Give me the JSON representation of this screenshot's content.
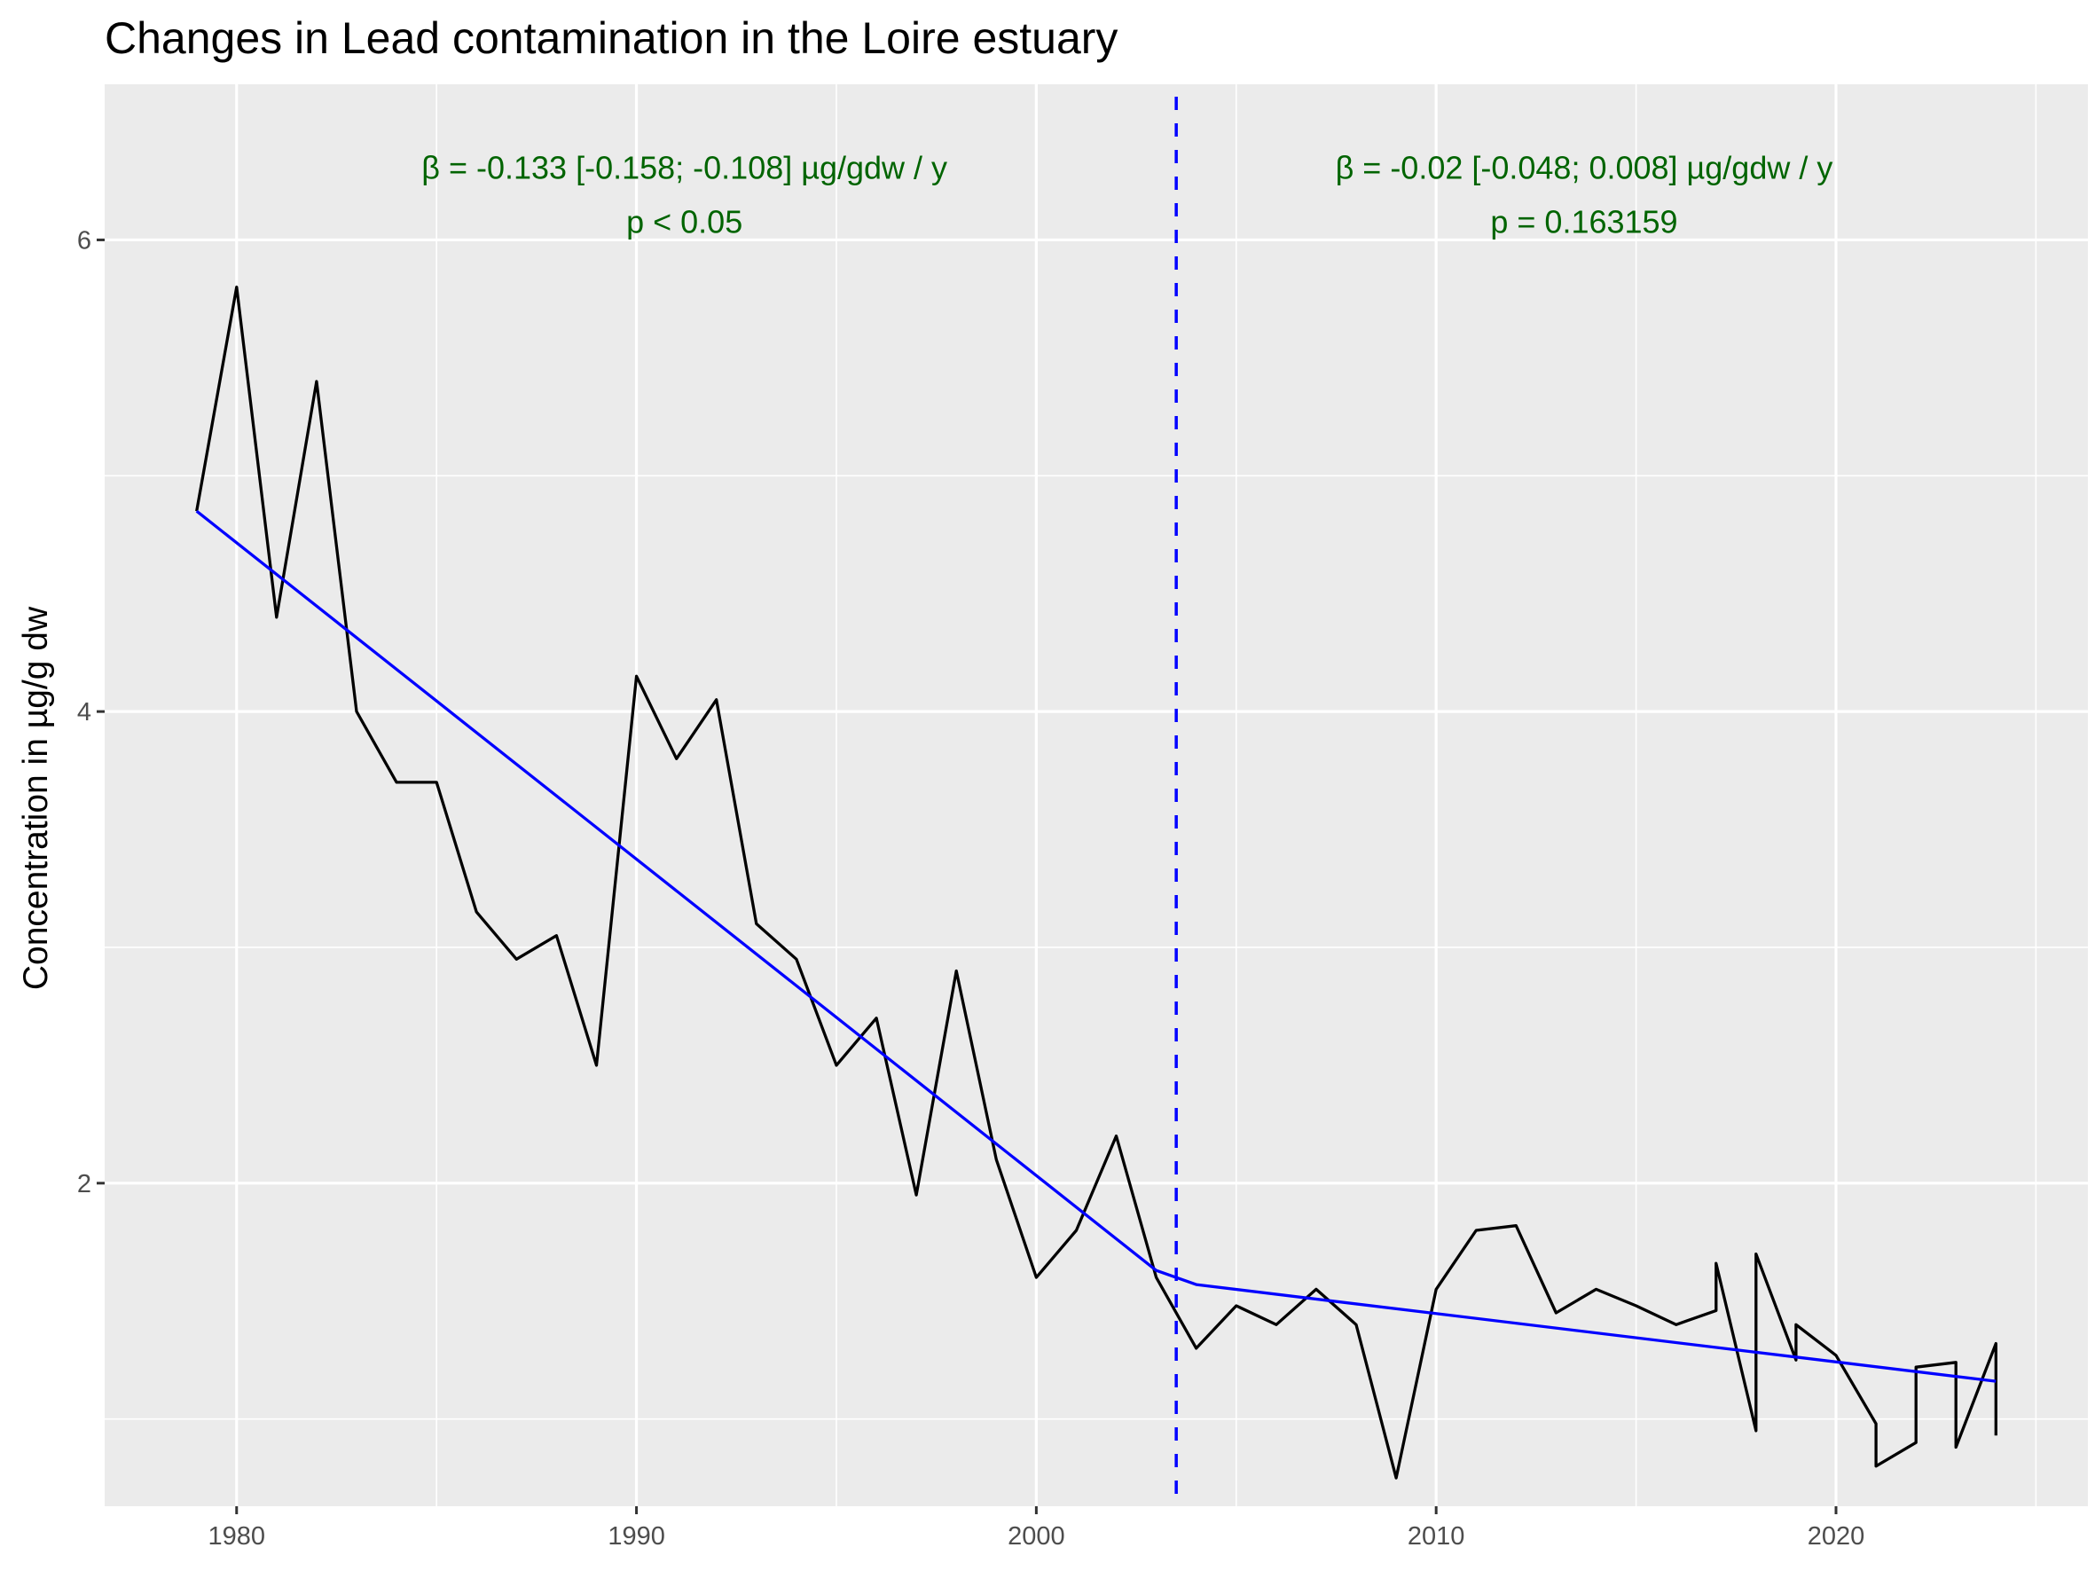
{
  "chart_data": {
    "type": "line",
    "title": "Changes in Lead contamination in the Loire estuary",
    "xlabel": "",
    "ylabel": "Concentration in µg/g dw",
    "xlim": [
      1976.7,
      2026.3
    ],
    "ylim": [
      0.63,
      6.66
    ],
    "x_ticks": [
      1980,
      1990,
      2000,
      2010,
      2020
    ],
    "y_ticks": [
      2,
      4,
      6
    ],
    "grid": true,
    "series": [
      {
        "color": "#000000",
        "points": [
          [
            1979,
            4.85
          ],
          [
            1980,
            5.8
          ],
          [
            1981,
            4.4
          ],
          [
            1982,
            5.4
          ],
          [
            1983,
            4.0
          ],
          [
            1984,
            3.7
          ],
          [
            1985,
            3.7
          ],
          [
            1986,
            3.15
          ],
          [
            1987,
            2.95
          ],
          [
            1988,
            3.05
          ],
          [
            1989,
            2.5
          ],
          [
            1990,
            4.15
          ],
          [
            1991,
            3.8
          ],
          [
            1992,
            4.05
          ],
          [
            1993,
            3.1
          ],
          [
            1994,
            2.95
          ],
          [
            1995,
            2.5
          ],
          [
            1996,
            2.7
          ],
          [
            1997,
            1.95
          ],
          [
            1998,
            2.9
          ],
          [
            1999,
            2.1
          ],
          [
            2000,
            1.6
          ],
          [
            2001,
            1.8
          ],
          [
            2002,
            2.2
          ],
          [
            2003,
            1.6
          ],
          [
            2004,
            1.3
          ],
          [
            2005,
            1.48
          ],
          [
            2006,
            1.4
          ],
          [
            2007,
            1.55
          ],
          [
            2008,
            1.4
          ],
          [
            2009,
            0.75
          ],
          [
            2010,
            1.55
          ],
          [
            2011,
            1.8
          ],
          [
            2012,
            1.82
          ],
          [
            2013,
            1.45
          ],
          [
            2014,
            1.55
          ],
          [
            2015,
            1.48
          ],
          [
            2016,
            1.4
          ],
          [
            2017,
            1.46
          ],
          [
            2017,
            1.66
          ],
          [
            2018,
            0.95
          ],
          [
            2018,
            1.7
          ],
          [
            2019,
            1.25
          ],
          [
            2019,
            1.4
          ],
          [
            2020,
            1.27
          ],
          [
            2021,
            0.98
          ],
          [
            2021,
            0.8
          ],
          [
            2022,
            0.9
          ],
          [
            2022,
            1.22
          ],
          [
            2023,
            1.24
          ],
          [
            2023,
            0.88
          ],
          [
            2024,
            1.32
          ],
          [
            2024,
            0.93
          ]
        ]
      },
      {
        "color": "#0000ff",
        "points": [
          [
            1979,
            4.85
          ],
          [
            2003,
            1.63
          ],
          [
            2004,
            1.57
          ],
          [
            2024,
            1.16
          ]
        ]
      }
    ],
    "breakpoint": {
      "x": 2003.5,
      "color": "#0000ff",
      "style": "dashed"
    },
    "annotations": [
      {
        "x": 1991.2,
        "y": 6.26,
        "text": "β = -0.133 [-0.158; -0.108] µg/gdw / y",
        "color": "#006400"
      },
      {
        "x": 1991.2,
        "y": 6.03,
        "text": "p < 0.05",
        "color": "#006400"
      },
      {
        "x": 2013.7,
        "y": 6.26,
        "text": "β = -0.02 [-0.048; 0.008] µg/gdw / y",
        "color": "#006400"
      },
      {
        "x": 2013.7,
        "y": 6.03,
        "text": "p = 0.163159",
        "color": "#006400"
      }
    ],
    "colors": {
      "panel": "#ebebeb",
      "grid": "#ffffff",
      "text": "#000000",
      "tick_text": "#4d4d4d"
    }
  }
}
